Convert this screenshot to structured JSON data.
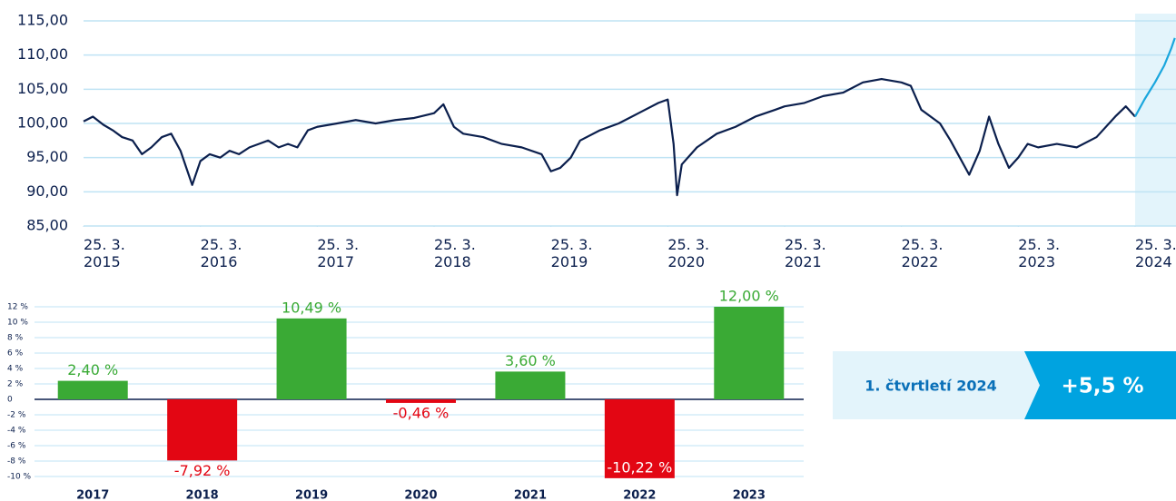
{
  "chart_data": [
    {
      "type": "line",
      "ylim": [
        85,
        115
      ],
      "yticks": [
        {
          "value": 85,
          "label": "85,00"
        },
        {
          "value": 90,
          "label": "90,00"
        },
        {
          "value": 95,
          "label": "95,00"
        },
        {
          "value": 100,
          "label": "100,00"
        },
        {
          "value": 105,
          "label": "105,00"
        },
        {
          "value": 110,
          "label": "110,00"
        },
        {
          "value": 115,
          "label": "115,00"
        }
      ],
      "xlim": [
        2015,
        2024.35
      ],
      "xticks": [
        {
          "value": 2015,
          "label": "25. 3. 2015"
        },
        {
          "value": 2016,
          "label": "25. 3. 2016"
        },
        {
          "value": 2017,
          "label": "25. 3. 2017"
        },
        {
          "value": 2018,
          "label": "25. 3. 2018"
        },
        {
          "value": 2019,
          "label": "25. 3. 2019"
        },
        {
          "value": 2020,
          "label": "25. 3. 2020"
        },
        {
          "value": 2021,
          "label": "25. 3. 2021"
        },
        {
          "value": 2022,
          "label": "25. 3. 2022"
        },
        {
          "value": 2023,
          "label": "25. 3. 2023"
        },
        {
          "value": 2024,
          "label": "25. 3. 2024"
        }
      ],
      "grid": true,
      "highlight_color": "#e3f4fb",
      "series": [
        {
          "color": "#0b1f4d",
          "x": [
            2015.0,
            2015.08,
            2015.17,
            2015.25,
            2015.33,
            2015.42,
            2015.5,
            2015.58,
            2015.67,
            2015.75,
            2015.83,
            2015.88,
            2015.93,
            2016.0,
            2016.08,
            2016.17,
            2016.25,
            2016.33,
            2016.42,
            2016.5,
            2016.58,
            2016.67,
            2016.75,
            2016.83,
            2016.92,
            2017.0,
            2017.17,
            2017.33,
            2017.5,
            2017.67,
            2017.83,
            2018.0,
            2018.08,
            2018.17,
            2018.25,
            2018.42,
            2018.58,
            2018.75,
            2018.92,
            2019.0,
            2019.08,
            2019.17,
            2019.25,
            2019.42,
            2019.58,
            2019.75,
            2019.92,
            2020.0,
            2020.05,
            2020.08,
            2020.12,
            2020.25,
            2020.42,
            2020.58,
            2020.75,
            2020.92,
            2021.0,
            2021.17,
            2021.33,
            2021.5,
            2021.67,
            2021.83,
            2022.0,
            2022.08,
            2022.17,
            2022.33,
            2022.42,
            2022.5,
            2022.58,
            2022.67,
            2022.75,
            2022.83,
            2022.92,
            2023.0,
            2023.08,
            2023.17,
            2023.33,
            2023.5,
            2023.67,
            2023.83,
            2023.92,
            2024.0
          ],
          "values": [
            100.3,
            101.0,
            99.8,
            99.0,
            98.0,
            97.5,
            95.5,
            96.5,
            98.0,
            98.5,
            96.0,
            93.5,
            91.0,
            94.5,
            95.5,
            95.0,
            96.0,
            95.5,
            96.5,
            97.0,
            97.5,
            96.5,
            97.0,
            96.5,
            99.0,
            99.5,
            100.0,
            100.5,
            100.0,
            100.5,
            100.8,
            101.5,
            102.8,
            99.5,
            98.5,
            98.0,
            97.0,
            96.5,
            95.5,
            93.0,
            93.5,
            95.0,
            97.5,
            99.0,
            100.0,
            101.5,
            103.0,
            103.5,
            97.0,
            89.5,
            94.0,
            96.5,
            98.5,
            99.5,
            101.0,
            102.0,
            102.5,
            103.0,
            104.0,
            104.5,
            106.0,
            106.5,
            106.0,
            105.5,
            102.0,
            100.0,
            97.5,
            95.0,
            92.5,
            96.0,
            101.0,
            97.0,
            93.5,
            95.0,
            97.0,
            96.5,
            97.0,
            96.5,
            98.0,
            101.0,
            102.5,
            101.0
          ]
        },
        {
          "color": "#1aa6dd",
          "x": [
            2024.0,
            2024.08,
            2024.17,
            2024.25,
            2024.31,
            2024.34
          ],
          "values": [
            101.0,
            103.5,
            106.0,
            108.5,
            111.0,
            112.5
          ]
        }
      ]
    },
    {
      "type": "bar",
      "categories": [
        "2017",
        "2018",
        "2019",
        "2020",
        "2021",
        "2022",
        "2023"
      ],
      "values": [
        2.4,
        -7.92,
        10.49,
        -0.46,
        3.6,
        -10.22,
        12.0
      ],
      "value_labels": [
        "2,40 %",
        "-7,92 %",
        "10,49 %",
        "-0,46 %",
        "3,60 %",
        "-10,22 %",
        "12,00 %"
      ],
      "positive_color": "#3aaa35",
      "negative_color": "#e30613",
      "ylim": [
        -11,
        12
      ],
      "yticks": [
        {
          "value": -10,
          "label": "-10 %"
        },
        {
          "value": -8,
          "label": "-8 %"
        },
        {
          "value": -6,
          "label": "-6 %"
        },
        {
          "value": -4,
          "label": "-4 %"
        },
        {
          "value": -2,
          "label": "-2 %"
        },
        0,
        {
          "value": 2,
          "label": "2 %"
        },
        {
          "value": 4,
          "label": "4 %"
        },
        {
          "value": 6,
          "label": "6 %"
        },
        {
          "value": 8,
          "label": "8 %"
        },
        {
          "value": 10,
          "label": "10 %"
        },
        {
          "value": 12,
          "label": "12 %"
        }
      ],
      "grid": true
    }
  ],
  "badge": {
    "label": "1. čtvrtletí 2024",
    "value": "+5,5 %"
  }
}
